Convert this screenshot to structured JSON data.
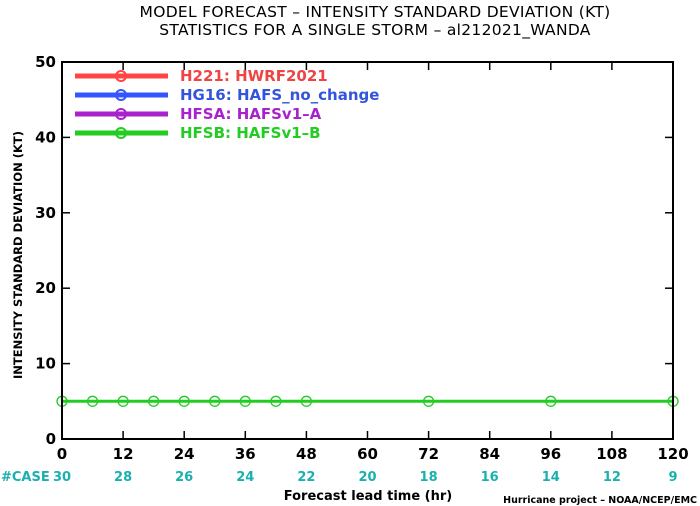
{
  "chart_data": {
    "type": "line",
    "title": "MODEL FORECAST – INTENSITY STANDARD DEVIATION (KT)",
    "subtitle": "STATISTICS FOR A SINGLE STORM – al212021_WANDA",
    "xlabel": "Forecast lead time (hr)",
    "ylabel": "INTENSITY STANDARD DEVIATION (KT)",
    "xlim": [
      0,
      120
    ],
    "ylim": [
      0,
      50
    ],
    "x_ticks": [
      "0",
      "12",
      "24",
      "36",
      "48",
      "60",
      "72",
      "84",
      "96",
      "108",
      "120"
    ],
    "y_ticks": [
      "0",
      "10",
      "20",
      "30",
      "40",
      "50"
    ],
    "grid": false,
    "legend_position": "top-left",
    "series": [
      {
        "name": "H221: HWRF2021",
        "label_color": "#ee4444",
        "color": "#ff4444",
        "x": [],
        "values": []
      },
      {
        "name": "HG16: HAFS_no_change",
        "label_color": "#3355dd",
        "color": "#3355ff",
        "x": [],
        "values": []
      },
      {
        "name": "HFSA: HAFSv1–A",
        "label_color": "#aa22cc",
        "color": "#aa22cc",
        "x": [],
        "values": []
      },
      {
        "name": "HFSB: HAFSv1–B",
        "label_color": "#22cc22",
        "color": "#22cc22",
        "x": [
          0,
          6,
          12,
          18,
          24,
          30,
          36,
          42,
          48,
          72,
          96,
          120
        ],
        "values": [
          5,
          5,
          5,
          5,
          5,
          5,
          5,
          5,
          5,
          5,
          5,
          5
        ]
      }
    ],
    "cases_label": "#CASE",
    "cases": [
      {
        "hr": 0,
        "n": "30"
      },
      {
        "hr": 12,
        "n": "28"
      },
      {
        "hr": 24,
        "n": "26"
      },
      {
        "hr": 36,
        "n": "24"
      },
      {
        "hr": 48,
        "n": "22"
      },
      {
        "hr": 60,
        "n": "20"
      },
      {
        "hr": 72,
        "n": "18"
      },
      {
        "hr": 84,
        "n": "16"
      },
      {
        "hr": 96,
        "n": "14"
      },
      {
        "hr": 108,
        "n": "12"
      },
      {
        "hr": 120,
        "n": "9"
      }
    ],
    "credit": "Hurricane project – NOAA/NCEP/EMC"
  }
}
